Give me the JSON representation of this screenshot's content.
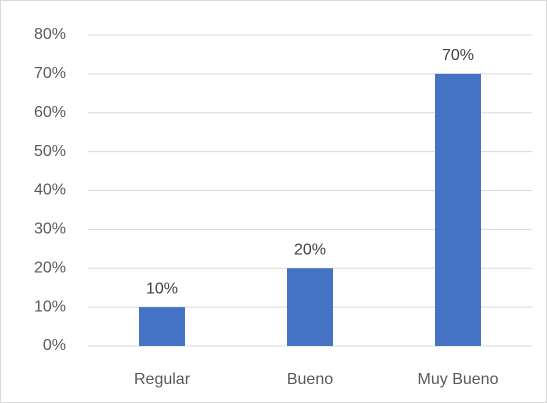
{
  "chart_data": {
    "type": "bar",
    "categories": [
      "Regular",
      "Bueno",
      "Muy Bueno"
    ],
    "values": [
      10,
      20,
      70
    ],
    "value_labels": [
      "10%",
      "20%",
      "70%"
    ],
    "color": "#4472c4",
    "ylim": [
      0,
      80
    ],
    "yticks": [
      {
        "value": 0,
        "label": "0%"
      },
      {
        "value": 10,
        "label": "10%"
      },
      {
        "value": 20,
        "label": "20%"
      },
      {
        "value": 30,
        "label": "30%"
      },
      {
        "value": 40,
        "label": "40%"
      },
      {
        "value": 50,
        "label": "50%"
      },
      {
        "value": 60,
        "label": "60%"
      },
      {
        "value": 70,
        "label": "70%"
      },
      {
        "value": 80,
        "label": "80%"
      }
    ],
    "grid": true
  }
}
